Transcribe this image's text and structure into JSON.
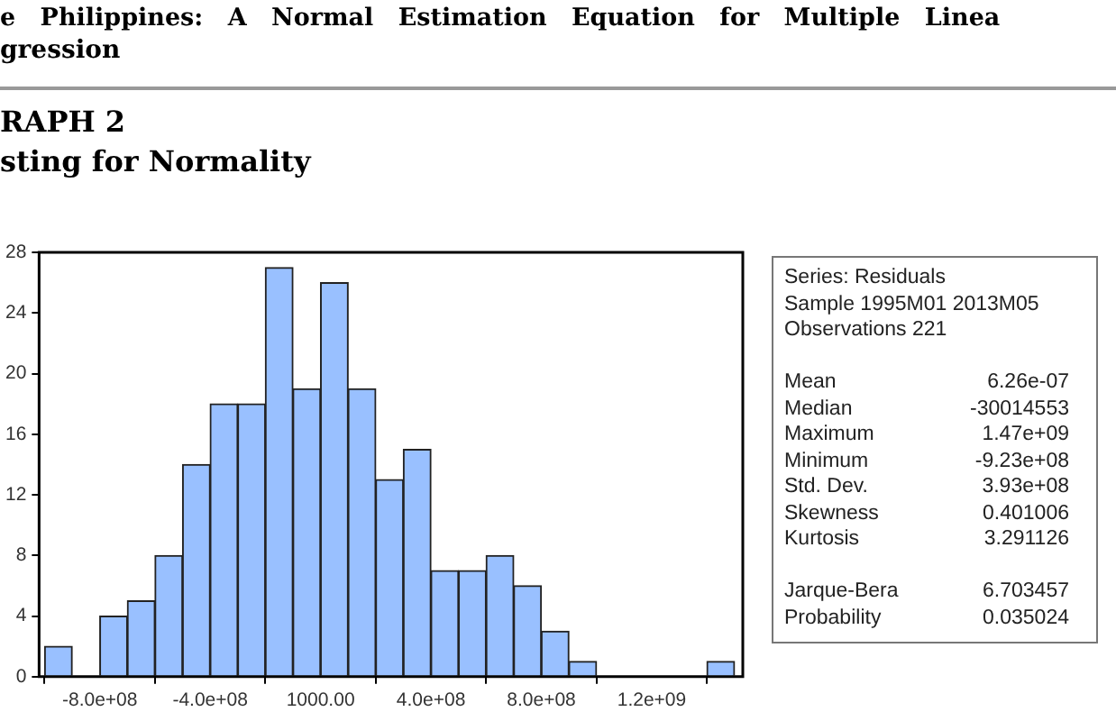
{
  "chart_data": [
    {
      "type": "histogram",
      "annotations": [
        "e Philippines: A Normal Estimation Equation for Multiple Linea",
        "gression"
      ],
      "title": "RAPH 2",
      "subtitle": "sting for Normality",
      "bins": [
        -1000000000,
        -900000000,
        -800000000,
        -700000000,
        -600000000,
        -500000000,
        -400000000,
        -300000000,
        -200000000,
        -100000000,
        0,
        100000000,
        200000000,
        300000000,
        400000000,
        500000000,
        600000000,
        700000000,
        800000000,
        900000000,
        1000000000,
        1100000000,
        1200000000,
        1300000000,
        1400000000,
        1500000000
      ],
      "values": [
        2,
        0,
        4,
        5,
        8,
        14,
        18,
        18,
        27,
        19,
        26,
        19,
        13,
        15,
        7,
        7,
        8,
        6,
        3,
        1,
        0,
        0,
        0,
        0,
        1
      ],
      "color": "#99c0ff",
      "xlim": [
        -1020000000,
        1530000000
      ],
      "xticks": [
        {
          "value": -800000000,
          "label": "-8.0e+08"
        },
        {
          "value": -400000000,
          "label": "-4.0e+08"
        },
        {
          "value": 1000,
          "label": "1000.00"
        },
        {
          "value": 400000000,
          "label": "4.0e+08"
        },
        {
          "value": 800000000,
          "label": "8.0e+08"
        },
        {
          "value": 1200000000,
          "label": "1.2e+09"
        }
      ],
      "ylim": [
        0,
        28
      ],
      "yticks": [
        0,
        4,
        8,
        12,
        16,
        20,
        24,
        28
      ],
      "grid": false,
      "legend": false
    },
    {
      "type": "other",
      "annotations": [
        "Series: Residuals",
        "Sample 1995M01 2013M05",
        "Observations 221"
      ],
      "categories": [
        "Mean",
        "Median",
        "Maximum",
        "Minimum",
        "Std. Dev.",
        "Skewness",
        "Kurtosis",
        null,
        "Jarque-Bera",
        "Probability"
      ],
      "value_labels": [
        "6.26e-07",
        "-30014553",
        "1.47e+09",
        "-9.23e+08",
        "3.93e+08",
        "0.401006",
        "3.291126",
        null,
        "6.703457",
        "0.035024"
      ]
    }
  ]
}
